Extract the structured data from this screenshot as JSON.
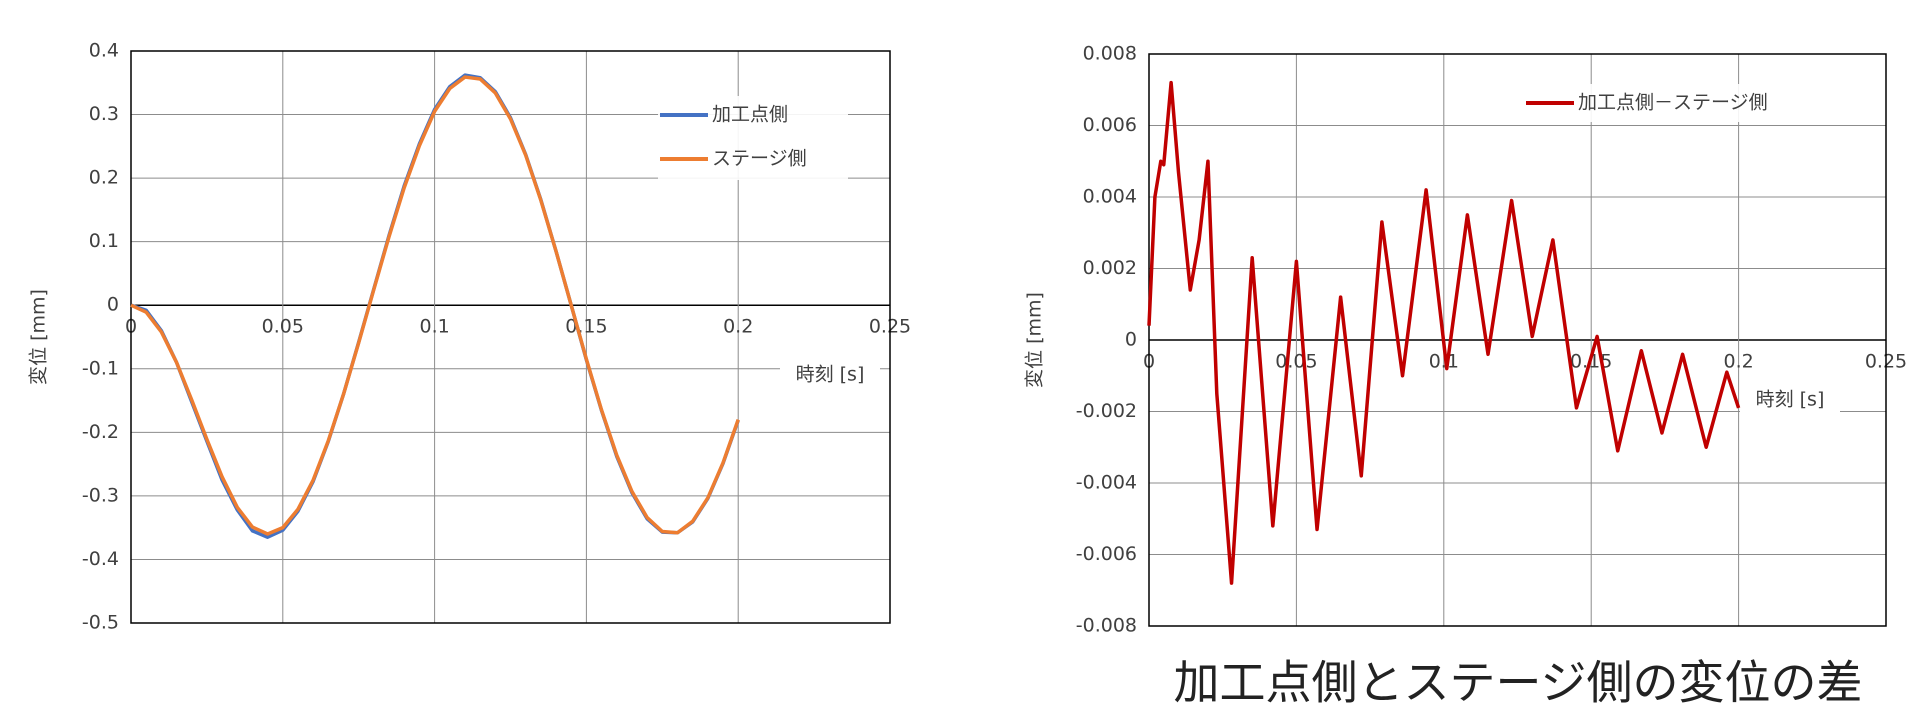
{
  "chart_data": [
    {
      "type": "line",
      "xlabel": "時刻 [s]",
      "ylabel": "変位 [mm]",
      "x": [
        0,
        0.005,
        0.01,
        0.015,
        0.02,
        0.025,
        0.03,
        0.035,
        0.04,
        0.045,
        0.05,
        0.055,
        0.06,
        0.065,
        0.07,
        0.075,
        0.08,
        0.085,
        0.09,
        0.095,
        0.1,
        0.105,
        0.11,
        0.115,
        0.12,
        0.125,
        0.13,
        0.135,
        0.14,
        0.145,
        0.15,
        0.155,
        0.16,
        0.165,
        0.17,
        0.175,
        0.18,
        0.185,
        0.19,
        0.195,
        0.2
      ],
      "series": [
        {
          "name": "加工点側",
          "color": "#4472c4",
          "values": [
            0,
            -0.008,
            -0.04,
            -0.09,
            -0.152,
            -0.214,
            -0.275,
            -0.322,
            -0.355,
            -0.365,
            -0.354,
            -0.324,
            -0.277,
            -0.214,
            -0.14,
            -0.058,
            0.026,
            0.11,
            0.188,
            0.254,
            0.308,
            0.344,
            0.362,
            0.358,
            0.336,
            0.295,
            0.237,
            0.166,
            0.085,
            0.0,
            -0.086,
            -0.166,
            -0.238,
            -0.295,
            -0.336,
            -0.357,
            -0.358,
            -0.341,
            -0.304,
            -0.249,
            -0.181
          ]
        },
        {
          "name": "ステージ側",
          "color": "#ed7d31",
          "values": [
            0,
            -0.011,
            -0.042,
            -0.09,
            -0.149,
            -0.211,
            -0.27,
            -0.318,
            -0.349,
            -0.36,
            -0.35,
            -0.321,
            -0.275,
            -0.213,
            -0.14,
            -0.059,
            0.025,
            0.108,
            0.185,
            0.251,
            0.305,
            0.341,
            0.359,
            0.356,
            0.334,
            0.293,
            0.236,
            0.165,
            0.085,
            0.0,
            -0.085,
            -0.165,
            -0.236,
            -0.293,
            -0.334,
            -0.356,
            -0.358,
            -0.34,
            -0.303,
            -0.248,
            -0.18
          ]
        }
      ],
      "xlim": [
        0,
        0.25
      ],
      "ylim": [
        -0.5,
        0.4
      ],
      "xticks": [
        0,
        0.05,
        0.1,
        0.15,
        0.2,
        0.25
      ],
      "yticks": [
        -0.5,
        -0.4,
        -0.3,
        -0.2,
        -0.1,
        0,
        0.1,
        0.2,
        0.3,
        0.4
      ],
      "grid": true,
      "legend": "upper right"
    },
    {
      "type": "line",
      "title": "加工点側とステージ側の変位の差",
      "xlabel": "時刻 [s]",
      "ylabel": "変位 [mm]",
      "x": [
        0,
        0.002,
        0.004,
        0.005,
        0.0075,
        0.01,
        0.014,
        0.017,
        0.02,
        0.023,
        0.028,
        0.035,
        0.042,
        0.05,
        0.057,
        0.065,
        0.072,
        0.079,
        0.086,
        0.094,
        0.101,
        0.108,
        0.115,
        0.123,
        0.13,
        0.137,
        0.145,
        0.152,
        0.159,
        0.167,
        0.174,
        0.181,
        0.189,
        0.196,
        0.2
      ],
      "series": [
        {
          "name": "加工点側－ステージ側",
          "color": "#c00000",
          "values": [
            0.0004,
            0.004,
            0.005,
            0.0049,
            0.0072,
            0.0047,
            0.0014,
            0.0028,
            0.005,
            -0.0015,
            -0.0068,
            0.0023,
            -0.0052,
            0.0022,
            -0.0053,
            0.0012,
            -0.0038,
            0.0033,
            -0.001,
            0.0042,
            -0.0008,
            0.0035,
            -0.0004,
            0.0039,
            0.0001,
            0.0028,
            -0.0019,
            0.0001,
            -0.0031,
            -0.0003,
            -0.0026,
            -0.0004,
            -0.003,
            -0.0009,
            -0.0019
          ]
        }
      ],
      "xlim": [
        0,
        0.25
      ],
      "ylim": [
        -0.008,
        0.008
      ],
      "xticks": [
        0,
        0.05,
        0.1,
        0.15,
        0.2,
        0.25
      ],
      "yticks": [
        -0.008,
        -0.006,
        -0.004,
        -0.002,
        0,
        0.002,
        0.004,
        0.006,
        0.008
      ],
      "grid": true,
      "legend": "upper right"
    }
  ]
}
